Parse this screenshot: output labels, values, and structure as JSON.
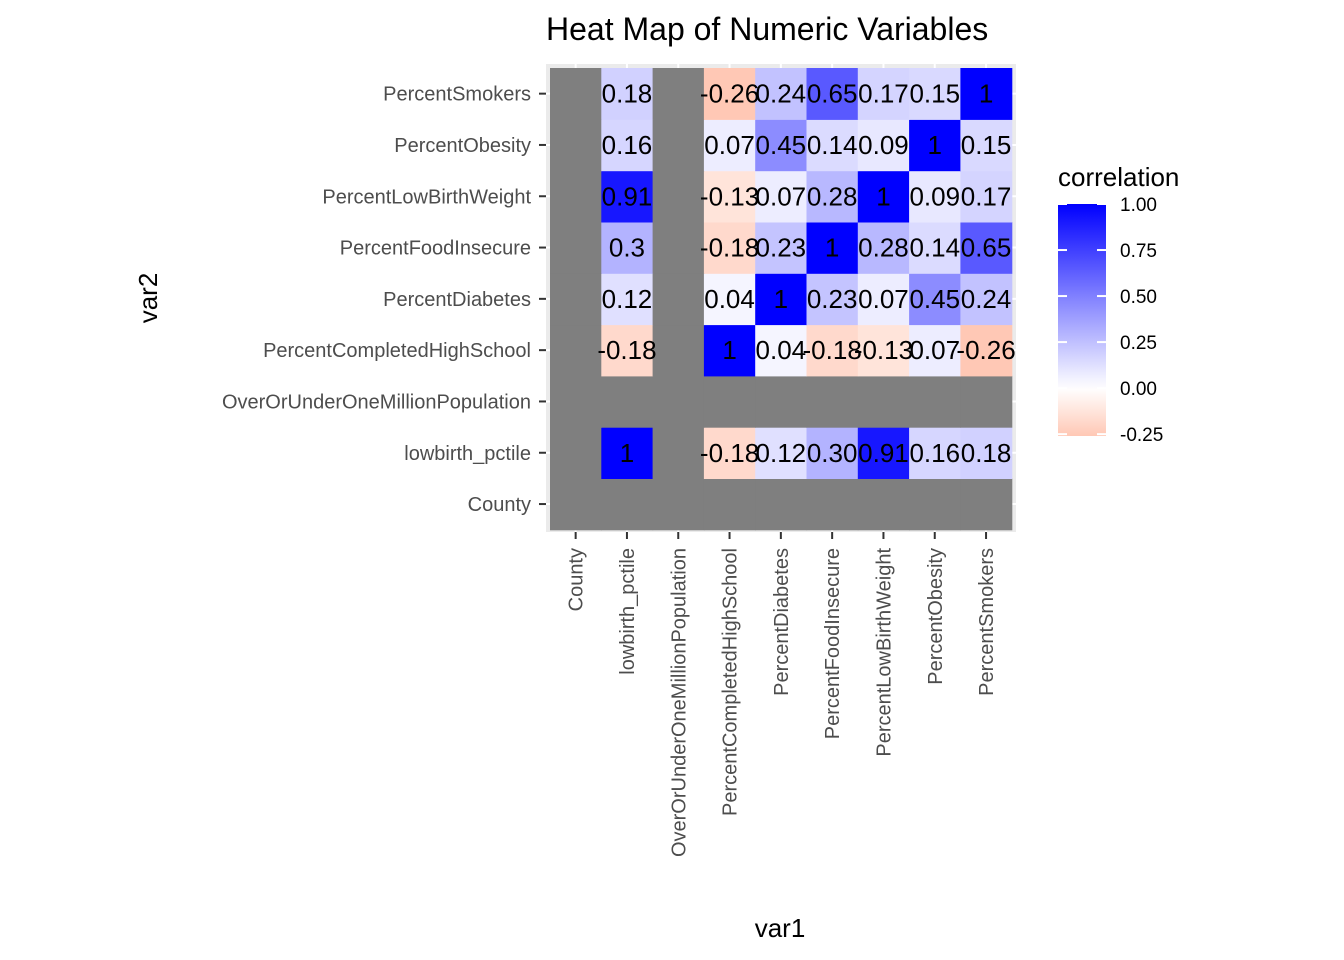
{
  "chart_data": {
    "type": "heatmap",
    "title": "Heat Map of Numeric Variables",
    "xlabel": "var1",
    "ylabel": "var2",
    "x_categories": [
      "County",
      "lowbirth_pctile",
      "OverOrUnderOneMillionPopulation",
      "PercentCompletedHighSchool",
      "PercentDiabetes",
      "PercentFoodInsecure",
      "PercentLowBirthWeight",
      "PercentObesity",
      "PercentSmokers"
    ],
    "y_categories": [
      "County",
      "lowbirth_pctile",
      "OverOrUnderOneMillionPopulation",
      "PercentCompletedHighSchool",
      "PercentDiabetes",
      "PercentFoodInsecure",
      "PercentLowBirthWeight",
      "PercentObesity",
      "PercentSmokers"
    ],
    "matrix": [
      [
        null,
        null,
        null,
        null,
        null,
        null,
        null,
        null,
        null
      ],
      [
        null,
        1,
        null,
        -0.18,
        0.12,
        0.3,
        0.91,
        0.16,
        0.18
      ],
      [
        null,
        null,
        null,
        null,
        null,
        null,
        null,
        null,
        null
      ],
      [
        null,
        -0.18,
        null,
        1,
        0.04,
        -0.18,
        -0.13,
        0.07,
        -0.26
      ],
      [
        null,
        0.12,
        null,
        0.04,
        1,
        0.23,
        0.07,
        0.45,
        0.24
      ],
      [
        null,
        0.3,
        null,
        -0.18,
        0.23,
        1,
        0.28,
        0.14,
        0.65
      ],
      [
        null,
        0.91,
        null,
        -0.13,
        0.07,
        0.28,
        1,
        0.09,
        0.17
      ],
      [
        null,
        0.16,
        null,
        0.07,
        0.45,
        0.14,
        0.09,
        1,
        0.15
      ],
      [
        null,
        0.18,
        null,
        -0.26,
        0.24,
        0.65,
        0.17,
        0.15,
        1
      ]
    ],
    "labels": [
      [
        "",
        "",
        "",
        "",
        "",
        "",
        "",
        "",
        ""
      ],
      [
        "",
        "1",
        "",
        "-0.18",
        "0.12",
        "0.30",
        "0.91",
        "0.16",
        "0.18"
      ],
      [
        "",
        "",
        "",
        "",
        "",
        "",
        "",
        "",
        ""
      ],
      [
        "",
        "-0.18",
        "",
        "1",
        "0.04",
        "-0.18",
        "-0.13",
        "0.07",
        "-0.26"
      ],
      [
        "",
        "0.12",
        "",
        "0.04",
        "1",
        "0.23",
        "0.07",
        "0.45",
        "0.24"
      ],
      [
        "",
        "0.3",
        "",
        "-0.18",
        "0.23",
        "1",
        "0.28",
        "0.14",
        "0.65"
      ],
      [
        "",
        "0.91",
        "",
        "-0.13",
        "0.07",
        "0.28",
        "1",
        "0.09",
        "0.17"
      ],
      [
        "",
        "0.16",
        "",
        "0.07",
        "0.45",
        "0.14",
        "0.09",
        "1",
        "0.15"
      ],
      [
        "",
        "0.18",
        "",
        "-0.26",
        "0.24",
        "0.65",
        "0.17",
        "0.15",
        "1"
      ]
    ],
    "na_color": "#7f7f7f",
    "color_scale": {
      "low": "#ffc8b5",
      "mid": "#ffffff",
      "high": "#0000ff",
      "range": [
        -0.26,
        1
      ]
    },
    "legend": {
      "title": "correlation",
      "position": "right",
      "ticks": [
        1.0,
        0.75,
        0.5,
        0.25,
        0.0,
        -0.25
      ],
      "tick_labels": [
        "1.00",
        "0.75",
        "0.50",
        "0.25",
        "0.00",
        "-0.25"
      ]
    },
    "grid": true
  }
}
